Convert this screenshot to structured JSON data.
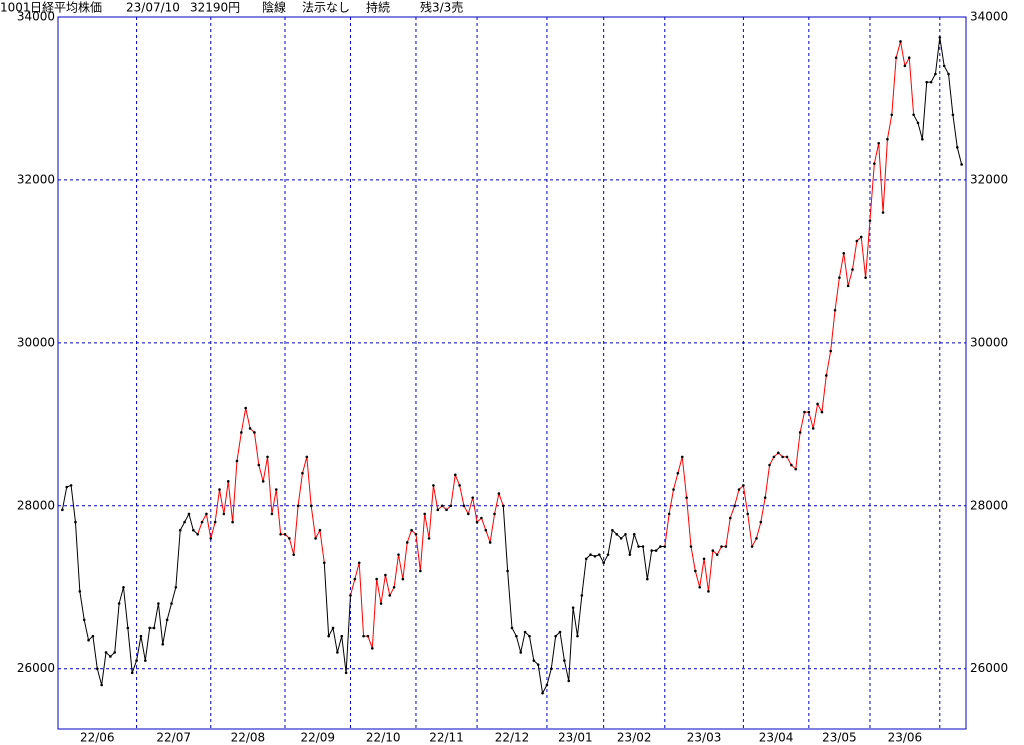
{
  "header": [
    "1001",
    "日経平均株価",
    "23/07/10",
    "32190円",
    "陰線",
    "法示なし",
    "持続",
    "残3/3売"
  ],
  "chart_data": {
    "type": "line",
    "xlim": [
      -1,
      207
    ],
    "ylim": [
      25260,
      34000
    ],
    "yticks": [
      26000,
      28000,
      30000,
      32000,
      34000
    ],
    "month_boundaries": [
      17,
      34,
      51,
      66,
      81,
      95,
      111,
      124,
      138,
      156,
      171,
      185,
      201
    ],
    "month_labels": [
      "22/06",
      "22/07",
      "22/08",
      "22/09",
      "22/10",
      "22/11",
      "22/12",
      "23/01",
      "23/02",
      "23/03",
      "23/04",
      "23/05",
      "23/06"
    ],
    "grid": true,
    "series": [
      {
        "color": "#000000",
        "values": [
          27950,
          28230,
          28250,
          27800,
          26950,
          26600,
          26350,
          26400,
          26000,
          25800,
          26200,
          26150,
          26200,
          26800,
          27000,
          26500,
          25950,
          26100,
          26400,
          26100,
          26500,
          26500,
          26800,
          26300,
          26600,
          26800,
          27000,
          27700,
          27800,
          27900,
          27700,
          27650,
          null,
          null,
          null,
          null,
          null,
          null,
          null,
          null,
          null,
          null,
          null,
          null,
          null,
          null,
          null,
          null,
          null,
          null,
          null,
          null,
          null,
          null,
          null,
          null,
          null,
          null,
          null,
          null,
          27300,
          26400,
          26500,
          26200,
          26400,
          25950,
          26900,
          null,
          null,
          null,
          null,
          null,
          null,
          null,
          null,
          null,
          null,
          null,
          null,
          null,
          null,
          null,
          null,
          null,
          null,
          null,
          null,
          null,
          null,
          null,
          null,
          null,
          null,
          null,
          null,
          null,
          null,
          null,
          null,
          null,
          null,
          28000,
          27200,
          26500,
          26400,
          26200,
          26450,
          26400,
          26100,
          26050,
          25700,
          25800,
          26000,
          26400,
          26450,
          26100,
          25850,
          26750,
          26400,
          26900,
          27350,
          27400,
          27380,
          27400,
          27300,
          27400,
          27700,
          27650,
          27600,
          27650,
          27400,
          27650,
          27500,
          27500,
          27100,
          27450,
          27450,
          27500,
          27500,
          null,
          null,
          null,
          null,
          null,
          null,
          null,
          null,
          null,
          null,
          null,
          null,
          null,
          null,
          null,
          null,
          null,
          null,
          null,
          null,
          null,
          null,
          null,
          null,
          null,
          null,
          null,
          null,
          null,
          null,
          null,
          null,
          null,
          null,
          null,
          null,
          null,
          null,
          null,
          null,
          null,
          null,
          null,
          null,
          null,
          null,
          null,
          null,
          null,
          null,
          null,
          null,
          null,
          null,
          null,
          null,
          32800,
          32700,
          32500,
          33200,
          33200,
          33300,
          33750,
          33400,
          33300,
          32800,
          32400,
          32190
        ]
      },
      {
        "color": "#ff0000",
        "values": [
          null,
          null,
          null,
          null,
          null,
          null,
          null,
          null,
          null,
          null,
          null,
          null,
          null,
          null,
          null,
          null,
          null,
          null,
          null,
          null,
          null,
          null,
          null,
          null,
          null,
          null,
          null,
          null,
          null,
          null,
          null,
          27650,
          27800,
          27900,
          27600,
          27800,
          28200,
          27900,
          28300,
          27800,
          28550,
          28900,
          29200,
          28950,
          28900,
          28500,
          28300,
          28600,
          27900,
          28200,
          27650,
          27650,
          27600,
          27400,
          28000,
          28400,
          28600,
          28000,
          27600,
          27700,
          27300,
          null,
          null,
          null,
          null,
          null,
          26900,
          27100,
          27300,
          26400,
          26400,
          26250,
          27100,
          26800,
          27150,
          26900,
          27000,
          27400,
          27100,
          27550,
          27700,
          27650,
          27200,
          27900,
          27600,
          28250,
          27950,
          28000,
          27950,
          28000,
          28380,
          28250,
          28000,
          27900,
          28100,
          27800,
          27850,
          27700,
          27550,
          27900,
          28150,
          28000,
          null,
          null,
          null,
          null,
          null,
          null,
          null,
          null,
          null,
          null,
          null,
          null,
          null,
          null,
          null,
          null,
          null,
          null,
          null,
          null,
          null,
          null,
          null,
          null,
          null,
          null,
          null,
          null,
          null,
          null,
          null,
          null,
          null,
          null,
          null,
          null,
          27500,
          27900,
          28200,
          28400,
          28600,
          28100,
          27500,
          27200,
          27000,
          27350,
          26950,
          27450,
          27400,
          27500,
          27500,
          27850,
          28000,
          28200,
          28250,
          27900,
          27500,
          27600,
          27800,
          28100,
          28500,
          28600,
          28650,
          28600,
          28600,
          28500,
          28450,
          28900,
          29150,
          29150,
          28950,
          29250,
          29150,
          29600,
          29900,
          30400,
          30800,
          31100,
          30700,
          30900,
          31250,
          31300,
          30800,
          31500,
          32200,
          32450,
          31600,
          32500,
          32800,
          33500,
          33700,
          33400,
          33500,
          32800,
          null,
          null,
          null,
          null,
          null,
          null,
          null,
          null,
          null,
          null,
          null
        ]
      }
    ]
  }
}
